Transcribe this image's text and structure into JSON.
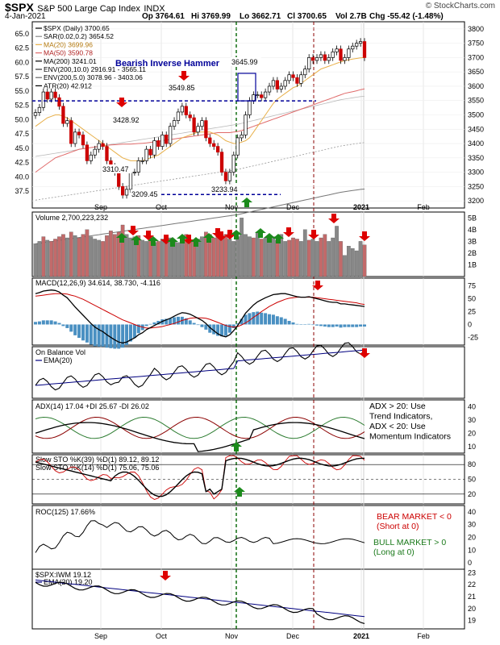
{
  "header": {
    "symbol": "$SPX",
    "name": "S&P 500 Large Cap Index",
    "exchange": "INDX",
    "date": "4-Jan-2021",
    "open": "Op 3764.61",
    "high": "Hi 3769.99",
    "low": "Lo 3662.71",
    "close": "Cl 3700.65",
    "volume": "Vol 2.7B",
    "change": "Chg -55.42 (-1.48%)",
    "watermark": "© StockCharts.com"
  },
  "colors": {
    "up": "#ffffff",
    "down": "#cc0000",
    "price_line": "#000000",
    "ma20": "#e8b04a",
    "ma50": "#e06b6b",
    "ma200": "#777777",
    "env": "#999999",
    "sar": "#888888",
    "volume_up": "#888888",
    "volume_down": "#c26a6a",
    "macd_line": "#000000",
    "macd_signal": "#cc0000",
    "macd_hist": "#4a90c2",
    "obv": "#000000",
    "obv_ema": "#000080",
    "adx": "#000000",
    "pdi": "#2e7d32",
    "mdi": "#8b0000",
    "sto_k": "#000000",
    "sto_d": "#cc0000",
    "ratio_line": "#000000",
    "ratio_ema": "#000080",
    "arrow_down": "#dd0000",
    "arrow_up": "#1b8a1b",
    "annotation_blue": "#000099",
    "guide_green": "#006400",
    "guide_red": "#8b0000"
  },
  "chart_data": [
    {
      "type": "line",
      "panel": "price",
      "title": "$SPX (Daily) 3700.65",
      "left_axis_ticks": [
        "65.0",
        "62.5",
        "60.0",
        "57.5",
        "55.0",
        "52.5",
        "50.0",
        "47.5",
        "45.0",
        "42.5",
        "40.0",
        "37.5"
      ],
      "right_axis_ticks": [
        "3800",
        "3750",
        "3700",
        "3650",
        "3600",
        "3550",
        "3500",
        "3450",
        "3400",
        "3350",
        "3300",
        "3250",
        "3200"
      ],
      "ylim": [
        3175,
        3825
      ],
      "x_labels": [
        "Sep",
        "Oct",
        "Nov",
        "Dec",
        "2021",
        "Feb"
      ],
      "legend": [
        "$SPX (Daily) 3700.65",
        "SAR(0.02,0.2) 3654.52",
        "MA(20) 3699.96",
        "MA(50) 3590.78",
        "MA(200) 3241.01",
        "ENV(200,10.0) 2916.91 - 3565.11",
        "ENV(200,5.0) 3078.96 - 3403.06",
        "ATR(20) 42.912"
      ],
      "annotations": [
        "Bearish Inverse Hammer",
        "3645.99",
        "3549.85",
        "3428.92",
        "3310.47",
        "3209.45",
        "3233.94"
      ],
      "close": [
        3508,
        3526,
        3580,
        3555,
        3580,
        3560,
        3530,
        3470,
        3480,
        3400,
        3440,
        3430,
        3395,
        3340,
        3360,
        3380,
        3400,
        3390,
        3340,
        3320,
        3300,
        3250,
        3220,
        3240,
        3300,
        3300,
        3340,
        3340,
        3380,
        3360,
        3410,
        3390,
        3430,
        3400,
        3460,
        3480,
        3510,
        3530,
        3500,
        3490,
        3440,
        3460,
        3480,
        3420,
        3400,
        3390,
        3370,
        3300,
        3270,
        3300,
        3360,
        3420,
        3430,
        3500,
        3550,
        3570,
        3570,
        3560,
        3580,
        3600,
        3620,
        3590,
        3600,
        3620,
        3640,
        3630,
        3610,
        3640,
        3660,
        3700,
        3690,
        3700,
        3710,
        3690,
        3700,
        3720,
        3730,
        3690,
        3700,
        3730,
        3740,
        3750,
        3756,
        3700
      ],
      "ma20": [
        3460,
        3470,
        3480,
        3490,
        3495,
        3500,
        3500,
        3495,
        3490,
        3480,
        3470,
        3460,
        3450,
        3440,
        3430,
        3420,
        3410,
        3400,
        3390,
        3380,
        3370,
        3360,
        3350,
        3345,
        3340,
        3340,
        3340,
        3340,
        3345,
        3350,
        3355,
        3360,
        3370,
        3380,
        3390,
        3400,
        3410,
        3420,
        3425,
        3430,
        3435,
        3440,
        3440,
        3440,
        3440,
        3435,
        3430,
        3420,
        3410,
        3405,
        3400,
        3400,
        3405,
        3410,
        3420,
        3440,
        3460,
        3480,
        3500,
        3520,
        3540,
        3555,
        3565,
        3575,
        3585,
        3595,
        3600,
        3610,
        3620,
        3630,
        3640,
        3650,
        3660,
        3665,
        3670,
        3675,
        3680,
        3685,
        3690,
        3692,
        3695,
        3697,
        3699,
        3700
      ],
      "ma50": [
        3300,
        3310,
        3320,
        3330,
        3340,
        3350,
        3355,
        3360,
        3365,
        3370,
        3375,
        3380,
        3382,
        3384,
        3386,
        3388,
        3390,
        3392,
        3394,
        3395,
        3396,
        3397,
        3398,
        3398,
        3398,
        3399,
        3400,
        3401,
        3402,
        3404,
        3406,
        3408,
        3410,
        3412,
        3414,
        3416,
        3418,
        3420,
        3422,
        3424,
        3426,
        3428,
        3430,
        3432,
        3434,
        3436,
        3438,
        3438,
        3438,
        3438,
        3440,
        3442,
        3445,
        3450,
        3455,
        3460,
        3465,
        3470,
        3475,
        3480,
        3485,
        3490,
        3495,
        3500,
        3505,
        3510,
        3515,
        3520,
        3525,
        3530,
        3535,
        3540,
        3545,
        3550,
        3555,
        3560,
        3565,
        3570,
        3575,
        3578,
        3581,
        3584,
        3588,
        3591
      ],
      "ma200": [
        3050,
        3052,
        3054,
        3056,
        3058,
        3060,
        3062,
        3064,
        3066,
        3068,
        3070,
        3072,
        3074,
        3076,
        3078,
        3080,
        3082,
        3084,
        3086,
        3088,
        3090,
        3092,
        3094,
        3096,
        3098,
        3100,
        3102,
        3104,
        3106,
        3108,
        3110,
        3112,
        3114,
        3116,
        3118,
        3120,
        3122,
        3124,
        3126,
        3128,
        3130,
        3132,
        3134,
        3136,
        3138,
        3140,
        3142,
        3144,
        3146,
        3148,
        3150,
        3152,
        3155,
        3158,
        3161,
        3164,
        3167,
        3170,
        3173,
        3176,
        3179,
        3182,
        3185,
        3188,
        3191,
        3194,
        3197,
        3200,
        3203,
        3206,
        3209,
        3212,
        3215,
        3218,
        3221,
        3224,
        3227,
        3230,
        3232,
        3234,
        3236,
        3238,
        3240,
        3241
      ]
    },
    {
      "type": "bar",
      "panel": "volume",
      "title": "Volume 2,700,223,232",
      "right_axis_ticks": [
        "5B",
        "4B",
        "3B",
        "2B",
        "1B"
      ],
      "ylim": [
        0,
        5.5
      ],
      "values": [
        2.8,
        3.0,
        3.4,
        3.1,
        3.0,
        3.2,
        3.4,
        3.6,
        3.3,
        3.8,
        3.5,
        3.3,
        3.6,
        4.0,
        3.4,
        3.2,
        3.1,
        3.0,
        3.5,
        3.9,
        3.6,
        3.8,
        4.4,
        3.6,
        3.3,
        3.4,
        3.5,
        3.1,
        3.0,
        3.3,
        2.9,
        3.0,
        3.2,
        3.1,
        3.3,
        3.0,
        2.9,
        3.2,
        3.6,
        3.1,
        3.0,
        3.2,
        3.4,
        3.8,
        3.6,
        3.3,
        3.4,
        3.5,
        3.6,
        3.2,
        3.0,
        3.4,
        5.0,
        3.6,
        3.4,
        3.3,
        3.8,
        3.2,
        3.3,
        3.0,
        3.4,
        3.1,
        3.6,
        3.0,
        3.1,
        3.3,
        3.2,
        3.0,
        4.0,
        3.1,
        3.2,
        3.0,
        3.3,
        3.6,
        3.0,
        3.3,
        4.3,
        3.0,
        1.8,
        2.6,
        2.4,
        2.2,
        3.0,
        2.7
      ],
      "down_days": [
        false,
        false,
        true,
        false,
        true,
        true,
        true,
        true,
        false,
        true,
        false,
        true,
        true,
        true,
        false,
        false,
        false,
        true,
        true,
        true,
        true,
        true,
        true,
        false,
        false,
        false,
        true,
        false,
        false,
        true,
        false,
        true,
        false,
        true,
        false,
        false,
        false,
        false,
        true,
        true,
        true,
        false,
        false,
        true,
        true,
        true,
        true,
        true,
        true,
        false,
        false,
        false,
        false,
        false,
        false,
        true,
        false,
        true,
        false,
        false,
        false,
        true,
        false,
        false,
        true,
        true,
        true,
        false,
        false,
        true,
        false,
        false,
        true,
        true,
        false,
        false,
        false,
        true,
        false,
        false,
        false,
        false,
        false,
        true
      ]
    },
    {
      "type": "line",
      "panel": "macd",
      "title": "MACD(12,26,9) 34.614, 38.730, -4.116",
      "right_axis_ticks": [
        "75",
        "50",
        "25",
        "0",
        "-25"
      ],
      "ylim": [
        -40,
        90
      ],
      "macd": [
        60,
        62,
        65,
        66,
        67,
        66,
        63,
        57,
        52,
        43,
        34,
        26,
        18,
        10,
        2,
        -5,
        -10,
        -14,
        -20,
        -25,
        -30,
        -34,
        -36,
        -34,
        -30,
        -26,
        -20,
        -16,
        -10,
        -6,
        -2,
        2,
        6,
        9,
        12,
        16,
        20,
        23,
        22,
        20,
        16,
        12,
        8,
        2,
        -6,
        -12,
        -18,
        -22,
        -24,
        -20,
        -12,
        -2,
        10,
        22,
        30,
        38,
        44,
        48,
        52,
        55,
        58,
        59,
        60,
        60,
        58,
        56,
        54,
        53,
        53,
        54,
        52,
        50,
        48,
        46,
        44,
        43,
        43,
        40,
        40,
        39,
        38,
        37,
        36,
        35
      ],
      "signal": [
        55,
        56,
        57,
        58,
        59,
        60,
        60,
        60,
        59,
        57,
        55,
        52,
        49,
        45,
        41,
        37,
        33,
        29,
        25,
        21,
        17,
        13,
        9,
        6,
        3,
        0,
        -3,
        -5,
        -7,
        -7,
        -6,
        -5,
        -4,
        -2,
        0,
        2,
        5,
        8,
        10,
        12,
        13,
        13,
        13,
        12,
        10,
        7,
        4,
        1,
        -2,
        -4,
        -5,
        -4,
        -1,
        3,
        8,
        14,
        19,
        25,
        30,
        35,
        39,
        43,
        46,
        49,
        51,
        52,
        53,
        53,
        53,
        53,
        53,
        52,
        51,
        50,
        49,
        48,
        47,
        46,
        45,
        44,
        43,
        42,
        40,
        39
      ]
    },
    {
      "type": "line",
      "panel": "obv",
      "title": "On Balance Vol",
      "legend": [
        "On Balance Vol",
        "EMA(20)"
      ]
    },
    {
      "type": "line",
      "panel": "adx",
      "title": "ADX(14) 17.04 +DI 25.67 -DI 26.02",
      "right_axis_ticks": [
        "40",
        "30",
        "20",
        "10"
      ],
      "ylim": [
        5,
        45
      ],
      "annotation": [
        "ADX > 20: Use",
        "Trend Indicators,",
        "ADX < 20: Use",
        "Momentum Indicators"
      ]
    },
    {
      "type": "line",
      "panel": "stochastic",
      "title_1": "Slow STO %K(39) %D(1) 89.12, 89.12",
      "title_2": "Slow STO %K(14) %D(1) 75.06, 75.06",
      "right_axis_ticks": [
        "80",
        "50",
        "20"
      ],
      "ylim": [
        0,
        100
      ]
    },
    {
      "type": "line",
      "panel": "roc",
      "title": "ROC(125) 17.66%",
      "right_axis_ticks": [
        "40",
        "30",
        "20",
        "10",
        "0"
      ],
      "ylim": [
        -5,
        45
      ],
      "annotation_bear": [
        "BEAR MARKET < 0",
        "(Short at 0)"
      ],
      "annotation_bull": [
        "BULL MARKET > 0",
        "(Long at 0)"
      ]
    },
    {
      "type": "line",
      "panel": "ratio",
      "title": "$SPX:IWM 19.12",
      "legend": [
        "$SPX:IWM 19.12",
        "EMA(20) 19.20"
      ],
      "right_axis_ticks": [
        "23",
        "22",
        "21",
        "20",
        "19"
      ],
      "ylim": [
        18.3,
        23.3
      ]
    }
  ],
  "x_axis_bottom": [
    "Sep",
    "Oct",
    "Nov",
    "Dec",
    "2021",
    "Feb"
  ]
}
